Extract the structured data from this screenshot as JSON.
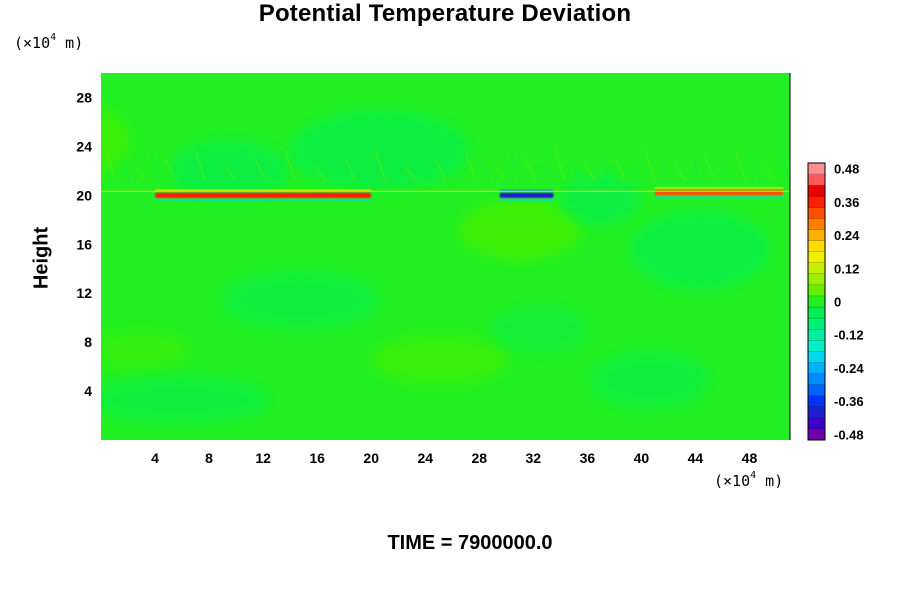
{
  "chart_data": {
    "type": "heatmap",
    "title": "Potential Temperature Deviation",
    "xlabel": "",
    "ylabel": "Height",
    "x_unit": [
      "(×10",
      "4",
      " m)"
    ],
    "y_unit": [
      "(×10",
      "4",
      " m)"
    ],
    "footer": "TIME = 7900000.0",
    "xlim": [
      0,
      51
    ],
    "ylim": [
      0,
      30
    ],
    "xticks": [
      4,
      8,
      12,
      16,
      20,
      24,
      28,
      32,
      36,
      40,
      44,
      48
    ],
    "yticks": [
      4,
      8,
      12,
      16,
      20,
      24,
      28
    ],
    "colorbar": {
      "min": -0.5,
      "max": 0.5,
      "levels": 25,
      "tick_labels": [
        "0.48",
        "0.36",
        "0.24",
        "0.12",
        "0",
        "-0.12",
        "-0.24",
        "-0.36",
        "-0.48"
      ],
      "tick_values": [
        0.48,
        0.36,
        0.24,
        0.12,
        0,
        -0.12,
        -0.24,
        -0.36,
        -0.48
      ],
      "colors": [
        "#6f00a8",
        "#3c00c8",
        "#1f1fd2",
        "#0036f0",
        "#0062ff",
        "#008cff",
        "#00b0ff",
        "#00d8f0",
        "#00f0c8",
        "#00f0a0",
        "#00f078",
        "#00ee55",
        "#22f022",
        "#66f000",
        "#99f000",
        "#c4f000",
        "#eef000",
        "#ffdc00",
        "#ffb000",
        "#ff8000",
        "#ff5000",
        "#ff1e00",
        "#e80000",
        "#ff5a5a",
        "#ff9090"
      ]
    },
    "background_value": 0,
    "features": [
      {
        "name": "positive anomaly band",
        "x": [
          4,
          20
        ],
        "y": 20,
        "value": 0.36
      },
      {
        "name": "negative anomaly band",
        "x": [
          29.5,
          33.5
        ],
        "y": 20,
        "value": -0.42
      },
      {
        "name": "mixed anomaly band",
        "x": [
          41,
          50.5
        ],
        "y": 20.2,
        "value": 0.3
      }
    ]
  }
}
